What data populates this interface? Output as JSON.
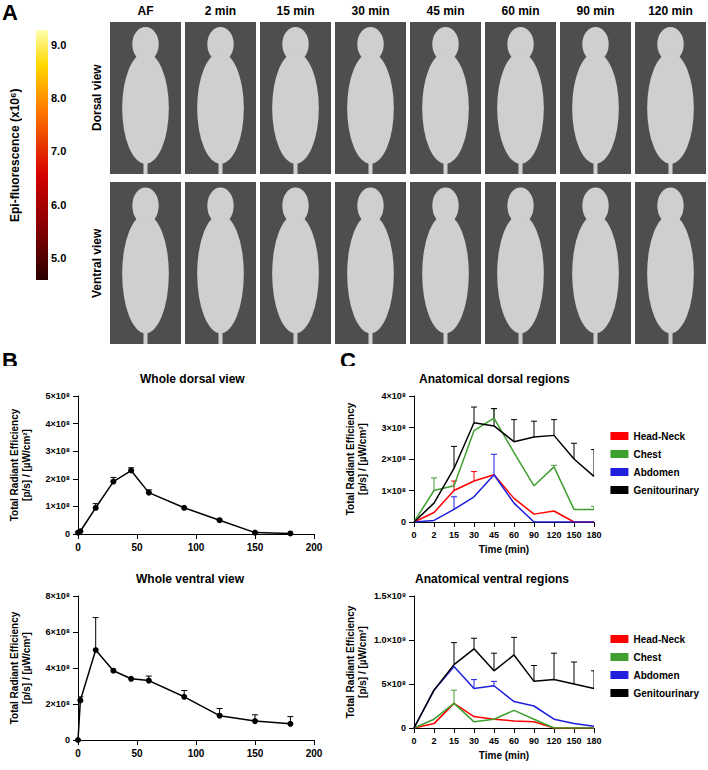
{
  "panel_letters": [
    "A",
    "B",
    "C"
  ],
  "image_panel": {
    "columns": [
      "AF",
      "2 min",
      "15 min",
      "30 min",
      "45 min",
      "60 min",
      "90 min",
      "120 min"
    ],
    "rows": [
      "Dorsal view",
      "Ventral view"
    ],
    "colorbar": {
      "title": "Epi-fluorescence (x10⁶)",
      "range": [
        4.6,
        9.3
      ],
      "ticks": [
        {
          "value": 5,
          "label": "5.0"
        },
        {
          "value": 6,
          "label": "6.0"
        },
        {
          "value": 7,
          "label": "7.0"
        },
        {
          "value": 8,
          "label": "8.0"
        },
        {
          "value": 9,
          "label": "9.0"
        }
      ]
    }
  },
  "chart_data": [
    {
      "type": "line",
      "panel": "B",
      "title": "Whole dorsal view",
      "ylabel": "Total Radiant Efficiency [p/s] / [µW/cm²]",
      "x": [
        0,
        2,
        15,
        30,
        45,
        60,
        90,
        120,
        150,
        180
      ],
      "xlim": [
        0,
        200
      ],
      "xticks": [
        0,
        50,
        100,
        150,
        200
      ],
      "ylim": [
        0,
        500000000
      ],
      "yticks": [
        0,
        {
          "value": 100000000,
          "label": "1×10⁸"
        },
        {
          "value": 200000000,
          "label": "2×10⁸"
        },
        {
          "value": 300000000,
          "label": "3×10⁸"
        },
        {
          "value": 400000000,
          "label": "4×10⁸"
        },
        {
          "value": 500000000,
          "label": "5×10⁸"
        }
      ],
      "grid": false,
      "series": [
        {
          "color": "#000000",
          "marker": "circle",
          "line_style": "solid",
          "values": [
            5000000,
            10000000,
            95000000,
            190000000,
            230000000,
            150000000,
            95000000,
            50000000,
            5000000,
            2000000
          ],
          "errors": [
            0,
            0,
            15000000,
            15000000,
            10000000,
            10000000,
            0,
            0,
            0,
            0
          ]
        }
      ]
    },
    {
      "type": "line",
      "panel": "B",
      "title": "Whole ventral view",
      "ylabel": "Total Radiant Efficiency [p/s] / [µW/cm²]",
      "x": [
        0,
        2,
        15,
        30,
        45,
        60,
        90,
        120,
        150,
        180
      ],
      "xlim": [
        0,
        200
      ],
      "xticks": [
        0,
        50,
        100,
        150,
        200
      ],
      "ylim": [
        0,
        800000000
      ],
      "yticks": [
        0,
        {
          "value": 200000000,
          "label": "2×10⁸"
        },
        {
          "value": 400000000,
          "label": "4×10⁸"
        },
        {
          "value": 600000000,
          "label": "6×10⁸"
        },
        {
          "value": 800000000,
          "label": "8×10⁸"
        }
      ],
      "grid": false,
      "series": [
        {
          "color": "#000000",
          "marker": "circle",
          "line_style": "solid",
          "values": [
            0,
            220000000,
            500000000,
            385000000,
            340000000,
            330000000,
            240000000,
            135000000,
            105000000,
            90000000
          ],
          "errors": [
            0,
            20000000,
            180000000,
            0,
            0,
            25000000,
            35000000,
            40000000,
            35000000,
            40000000
          ]
        }
      ]
    },
    {
      "type": "line",
      "panel": "C",
      "title": "Anatomical dorsal regions",
      "xlabel": "Time (min)",
      "ylabel": "Total Radiant Efficiency [p/s] / [µW/cm²]",
      "categories": [
        0,
        2,
        15,
        30,
        45,
        60,
        90,
        120,
        150,
        180
      ],
      "ylim": [
        0,
        400000000
      ],
      "yticks": [
        0,
        {
          "value": 100000000,
          "label": "1×10⁸"
        },
        {
          "value": 200000000,
          "label": "2×10⁸"
        },
        {
          "value": 300000000,
          "label": "3×10⁸"
        },
        {
          "value": 400000000,
          "label": "4×10⁸"
        }
      ],
      "grid": false,
      "legend": "right",
      "series": [
        {
          "name": "Head-Neck",
          "color": "#ff0000",
          "marker": "none",
          "line_style": "solid",
          "values": [
            0,
            30000000,
            100000000,
            130000000,
            150000000,
            75000000,
            25000000,
            35000000,
            0,
            0
          ],
          "errors": [
            0,
            0,
            30000000,
            30000000,
            0,
            0,
            0,
            0,
            0,
            0
          ]
        },
        {
          "name": "Chest",
          "color": "#3f9f2f",
          "marker": "none",
          "line_style": "solid",
          "values": [
            0,
            100000000,
            115000000,
            290000000,
            330000000,
            220000000,
            115000000,
            175000000,
            40000000,
            40000000
          ],
          "errors": [
            0,
            40000000,
            0,
            0,
            30000000,
            0,
            0,
            5000000,
            0,
            10000000
          ]
        },
        {
          "name": "Abdomen",
          "color": "#1f1fdd",
          "marker": "none",
          "line_style": "solid",
          "values": [
            0,
            5000000,
            40000000,
            80000000,
            150000000,
            60000000,
            0,
            0,
            0,
            0
          ],
          "errors": [
            0,
            0,
            40000000,
            0,
            65000000,
            0,
            0,
            0,
            0,
            0
          ]
        },
        {
          "name": "Genitourinary",
          "color": "#000000",
          "marker": "none",
          "line_style": "solid",
          "values": [
            0,
            60000000,
            170000000,
            315000000,
            305000000,
            255000000,
            270000000,
            275000000,
            200000000,
            145000000
          ],
          "errors": [
            0,
            0,
            70000000,
            50000000,
            55000000,
            70000000,
            50000000,
            50000000,
            50000000,
            85000000
          ]
        }
      ]
    },
    {
      "type": "line",
      "panel": "C",
      "title": "Anatomical ventral regions",
      "xlabel": "Time (min)",
      "ylabel": "Total Radiant Efficiency [p/s] / [µW/cm²]",
      "categories": [
        0,
        2,
        15,
        30,
        45,
        60,
        90,
        120,
        150,
        180
      ],
      "ylim": [
        0,
        1500000000
      ],
      "yticks": [
        0,
        {
          "value": 500000000,
          "label": "5×10⁸"
        },
        {
          "value": 1000000000,
          "label": "1.0×10⁹"
        },
        {
          "value": 1500000000,
          "label": "1.5×10⁹"
        }
      ],
      "grid": false,
      "legend": "right",
      "series": [
        {
          "name": "Head-Neck",
          "color": "#ff0000",
          "marker": "none",
          "line_style": "solid",
          "values": [
            0,
            50000000,
            280000000,
            130000000,
            100000000,
            80000000,
            70000000,
            0,
            0,
            0
          ],
          "errors": [
            0,
            0,
            0,
            0,
            0,
            0,
            0,
            0,
            0,
            0
          ]
        },
        {
          "name": "Chest",
          "color": "#3f9f2f",
          "marker": "none",
          "line_style": "solid",
          "values": [
            0,
            100000000,
            280000000,
            70000000,
            100000000,
            200000000,
            100000000,
            0,
            0,
            0
          ],
          "errors": [
            0,
            0,
            150000000,
            0,
            0,
            0,
            0,
            0,
            0,
            0
          ]
        },
        {
          "name": "Abdomen",
          "color": "#1f1fdd",
          "marker": "none",
          "line_style": "solid",
          "values": [
            0,
            430000000,
            700000000,
            450000000,
            480000000,
            300000000,
            250000000,
            100000000,
            50000000,
            20000000
          ],
          "errors": [
            0,
            0,
            0,
            100000000,
            50000000,
            0,
            0,
            0,
            0,
            0
          ]
        },
        {
          "name": "Genitourinary",
          "color": "#000000",
          "marker": "none",
          "line_style": "solid",
          "values": [
            0,
            430000000,
            720000000,
            900000000,
            650000000,
            830000000,
            530000000,
            550000000,
            500000000,
            450000000
          ],
          "errors": [
            0,
            0,
            250000000,
            120000000,
            200000000,
            200000000,
            180000000,
            300000000,
            250000000,
            200000000
          ]
        }
      ]
    }
  ]
}
